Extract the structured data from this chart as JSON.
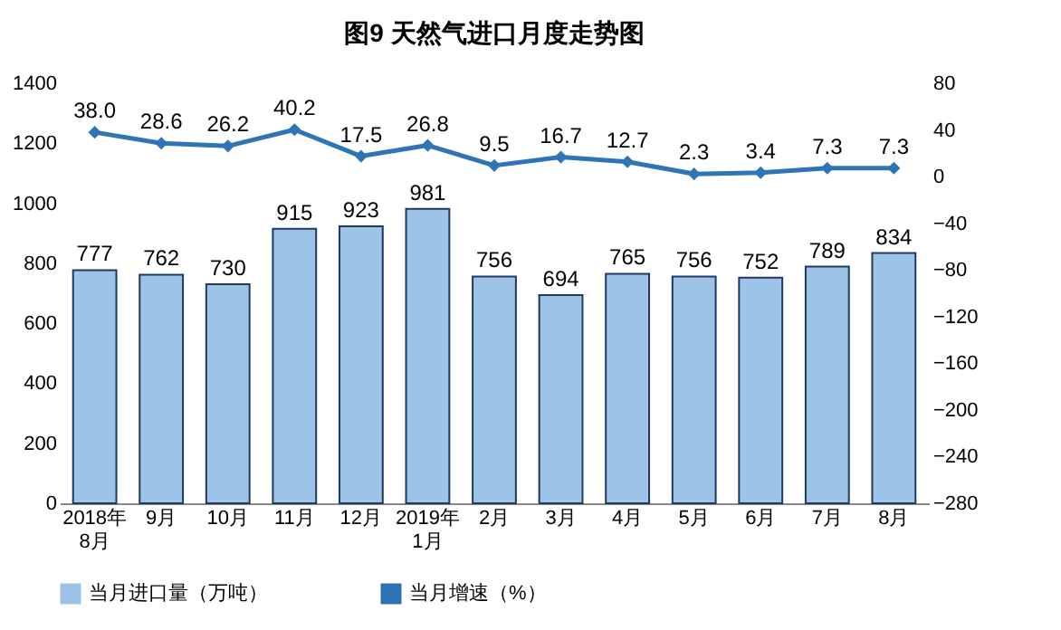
{
  "chart_data": {
    "type": "bar",
    "title": "图9  天然气进口月度走势图",
    "categories": [
      "2018年\n8月",
      "9月",
      "10月",
      "11月",
      "12月",
      "2019年\n1月",
      "2月",
      "3月",
      "4月",
      "5月",
      "6月",
      "7月",
      "8月"
    ],
    "series": [
      {
        "name": "当月进口量（万吨）",
        "color": "#9dc3e6",
        "values": [
          777,
          762,
          730,
          915,
          923,
          981,
          756,
          694,
          765,
          756,
          752,
          789,
          834
        ],
        "value_labels": [
          "777",
          "762",
          "730",
          "915",
          "923",
          "981",
          "756",
          "694",
          "765",
          "756",
          "752",
          "789",
          "834"
        ]
      },
      {
        "name": "当月增速（%）",
        "type": "line",
        "axis": "y2",
        "color": "#2e75b6",
        "values": [
          38.0,
          28.6,
          26.2,
          40.2,
          17.5,
          26.8,
          9.5,
          16.7,
          12.7,
          2.3,
          3.4,
          7.3,
          7.3
        ],
        "value_labels": [
          "38.0",
          "28.6",
          "26.2",
          "40.2",
          "17.5",
          "26.8",
          "9.5",
          "16.7",
          "12.7",
          "2.3",
          "3.4",
          "7.3",
          "7.3"
        ]
      }
    ],
    "ylim": [
      0,
      1400
    ],
    "yticks": [
      0,
      200,
      400,
      600,
      800,
      1000,
      1200,
      1400
    ],
    "y2lim": [
      -280,
      80
    ],
    "y2ticks": [
      -280,
      -240,
      -200,
      -160,
      -120,
      -80,
      -40,
      0,
      40,
      80
    ],
    "legend": "bottom",
    "marker": "diamond",
    "line_style": "solid",
    "grid": false
  }
}
